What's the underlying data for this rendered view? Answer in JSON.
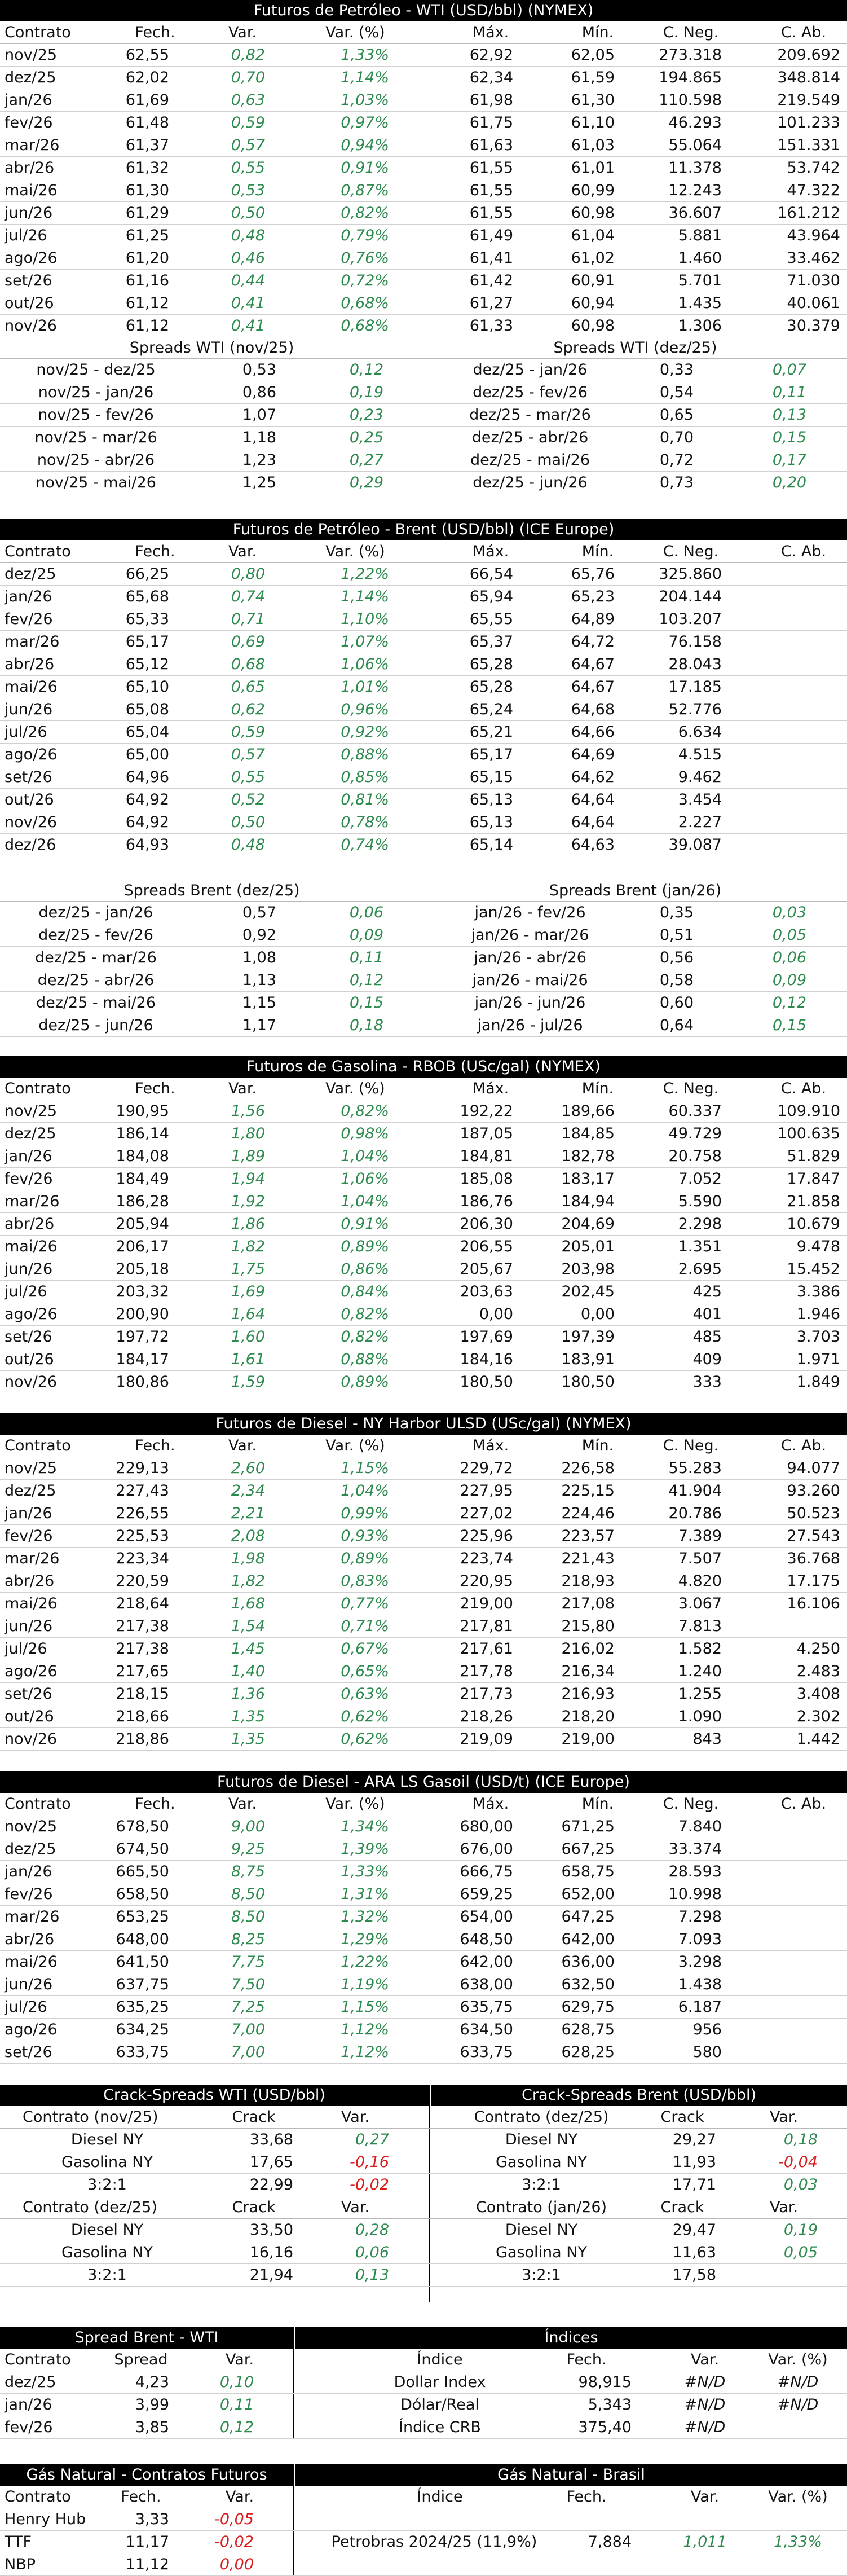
{
  "wti": {
    "title": "Futuros de Petróleo - WTI (USD/bbl) (NYMEX)",
    "headers": [
      "Contrato",
      "Fech.",
      "Var.",
      "Var. (%)",
      "Máx.",
      "Mín.",
      "C. Neg.",
      "C. Ab."
    ],
    "rows": [
      [
        "nov/25",
        "62,55",
        "0,82",
        "1,33%",
        "62,92",
        "62,05",
        "273.318",
        "209.692"
      ],
      [
        "dez/25",
        "62,02",
        "0,70",
        "1,14%",
        "62,34",
        "61,59",
        "194.865",
        "348.814"
      ],
      [
        "jan/26",
        "61,69",
        "0,63",
        "1,03%",
        "61,98",
        "61,30",
        "110.598",
        "219.549"
      ],
      [
        "fev/26",
        "61,48",
        "0,59",
        "0,97%",
        "61,75",
        "61,10",
        "46.293",
        "101.233"
      ],
      [
        "mar/26",
        "61,37",
        "0,57",
        "0,94%",
        "61,63",
        "61,03",
        "55.064",
        "151.331"
      ],
      [
        "abr/26",
        "61,32",
        "0,55",
        "0,91%",
        "61,55",
        "61,01",
        "11.378",
        "53.742"
      ],
      [
        "mai/26",
        "61,30",
        "0,53",
        "0,87%",
        "61,55",
        "60,99",
        "12.243",
        "47.322"
      ],
      [
        "jun/26",
        "61,29",
        "0,50",
        "0,82%",
        "61,55",
        "60,98",
        "36.607",
        "161.212"
      ],
      [
        "jul/26",
        "61,25",
        "0,48",
        "0,79%",
        "61,49",
        "61,04",
        "5.881",
        "43.964"
      ],
      [
        "ago/26",
        "61,20",
        "0,46",
        "0,76%",
        "61,41",
        "61,02",
        "1.460",
        "33.462"
      ],
      [
        "set/26",
        "61,16",
        "0,44",
        "0,72%",
        "61,42",
        "60,91",
        "5.701",
        "71.030"
      ],
      [
        "out/26",
        "61,12",
        "0,41",
        "0,68%",
        "61,27",
        "60,94",
        "1.435",
        "40.061"
      ],
      [
        "nov/26",
        "61,12",
        "0,41",
        "0,68%",
        "61,33",
        "60,98",
        "1.306",
        "30.379"
      ]
    ],
    "spreads_left_title": "Spreads WTI (nov/25)",
    "spreads_right_title": "Spreads WTI (dez/25)",
    "spreads": [
      [
        "nov/25 - dez/25",
        "0,53",
        "0,12",
        "dez/25 - jan/26",
        "0,33",
        "0,07"
      ],
      [
        "nov/25 - jan/26",
        "0,86",
        "0,19",
        "dez/25 - fev/26",
        "0,54",
        "0,11"
      ],
      [
        "nov/25 - fev/26",
        "1,07",
        "0,23",
        "dez/25 - mar/26",
        "0,65",
        "0,13"
      ],
      [
        "nov/25 - mar/26",
        "1,18",
        "0,25",
        "dez/25 - abr/26",
        "0,70",
        "0,15"
      ],
      [
        "nov/25 - abr/26",
        "1,23",
        "0,27",
        "dez/25 - mai/26",
        "0,72",
        "0,17"
      ],
      [
        "nov/25 - mai/26",
        "1,25",
        "0,29",
        "dez/25 - jun/26",
        "0,73",
        "0,20"
      ]
    ]
  },
  "brent": {
    "title": "Futuros de Petróleo - Brent (USD/bbl) (ICE Europe)",
    "headers": [
      "Contrato",
      "Fech.",
      "Var.",
      "Var. (%)",
      "Máx.",
      "Mín.",
      "C. Neg.",
      "C. Ab."
    ],
    "rows": [
      [
        "dez/25",
        "66,25",
        "0,80",
        "1,22%",
        "66,54",
        "65,76",
        "325.860",
        ""
      ],
      [
        "jan/26",
        "65,68",
        "0,74",
        "1,14%",
        "65,94",
        "65,23",
        "204.144",
        ""
      ],
      [
        "fev/26",
        "65,33",
        "0,71",
        "1,10%",
        "65,55",
        "64,89",
        "103.207",
        ""
      ],
      [
        "mar/26",
        "65,17",
        "0,69",
        "1,07%",
        "65,37",
        "64,72",
        "76.158",
        ""
      ],
      [
        "abr/26",
        "65,12",
        "0,68",
        "1,06%",
        "65,28",
        "64,67",
        "28.043",
        ""
      ],
      [
        "mai/26",
        "65,10",
        "0,65",
        "1,01%",
        "65,28",
        "64,67",
        "17.185",
        ""
      ],
      [
        "jun/26",
        "65,08",
        "0,62",
        "0,96%",
        "65,24",
        "64,68",
        "52.776",
        ""
      ],
      [
        "jul/26",
        "65,04",
        "0,59",
        "0,92%",
        "65,21",
        "64,66",
        "6.634",
        ""
      ],
      [
        "ago/26",
        "65,00",
        "0,57",
        "0,88%",
        "65,17",
        "64,69",
        "4.515",
        ""
      ],
      [
        "set/26",
        "64,96",
        "0,55",
        "0,85%",
        "65,15",
        "64,62",
        "9.462",
        ""
      ],
      [
        "out/26",
        "64,92",
        "0,52",
        "0,81%",
        "65,13",
        "64,64",
        "3.454",
        ""
      ],
      [
        "nov/26",
        "64,92",
        "0,50",
        "0,78%",
        "65,13",
        "64,64",
        "2.227",
        ""
      ],
      [
        "dez/26",
        "64,93",
        "0,48",
        "0,74%",
        "65,14",
        "64,63",
        "39.087",
        ""
      ]
    ],
    "spreads_left_title": "Spreads Brent (dez/25)",
    "spreads_right_title": "Spreads Brent (jan/26)",
    "spreads": [
      [
        "dez/25 - jan/26",
        "0,57",
        "0,06",
        "jan/26 - fev/26",
        "0,35",
        "0,03"
      ],
      [
        "dez/25 - fev/26",
        "0,92",
        "0,09",
        "jan/26 - mar/26",
        "0,51",
        "0,05"
      ],
      [
        "dez/25 - mar/26",
        "1,08",
        "0,11",
        "jan/26 - abr/26",
        "0,56",
        "0,06"
      ],
      [
        "dez/25 - abr/26",
        "1,13",
        "0,12",
        "jan/26 - mai/26",
        "0,58",
        "0,09"
      ],
      [
        "dez/25 - mai/26",
        "1,15",
        "0,15",
        "jan/26 - jun/26",
        "0,60",
        "0,12"
      ],
      [
        "dez/25 - jun/26",
        "1,17",
        "0,18",
        "jan/26 - jul/26",
        "0,64",
        "0,15"
      ]
    ]
  },
  "rbob": {
    "title": "Futuros de Gasolina - RBOB (USc/gal) (NYMEX)",
    "headers": [
      "Contrato",
      "Fech.",
      "Var.",
      "Var. (%)",
      "Máx.",
      "Mín.",
      "C. Neg.",
      "C. Ab."
    ],
    "rows": [
      [
        "nov/25",
        "190,95",
        "1,56",
        "0,82%",
        "192,22",
        "189,66",
        "60.337",
        "109.910"
      ],
      [
        "dez/25",
        "186,14",
        "1,80",
        "0,98%",
        "187,05",
        "184,85",
        "49.729",
        "100.635"
      ],
      [
        "jan/26",
        "184,08",
        "1,89",
        "1,04%",
        "184,81",
        "182,78",
        "20.758",
        "51.829"
      ],
      [
        "fev/26",
        "184,49",
        "1,94",
        "1,06%",
        "185,08",
        "183,17",
        "7.052",
        "17.847"
      ],
      [
        "mar/26",
        "186,28",
        "1,92",
        "1,04%",
        "186,76",
        "184,94",
        "5.590",
        "21.858"
      ],
      [
        "abr/26",
        "205,94",
        "1,86",
        "0,91%",
        "206,30",
        "204,69",
        "2.298",
        "10.679"
      ],
      [
        "mai/26",
        "206,17",
        "1,82",
        "0,89%",
        "206,55",
        "205,01",
        "1.351",
        "9.478"
      ],
      [
        "jun/26",
        "205,18",
        "1,75",
        "0,86%",
        "205,67",
        "203,98",
        "2.695",
        "15.452"
      ],
      [
        "jul/26",
        "203,32",
        "1,69",
        "0,84%",
        "203,63",
        "202,45",
        "425",
        "3.386"
      ],
      [
        "ago/26",
        "200,90",
        "1,64",
        "0,82%",
        "0,00",
        "0,00",
        "401",
        "1.946"
      ],
      [
        "set/26",
        "197,72",
        "1,60",
        "0,82%",
        "197,69",
        "197,39",
        "485",
        "3.703"
      ],
      [
        "out/26",
        "184,17",
        "1,61",
        "0,88%",
        "184,16",
        "183,91",
        "409",
        "1.971"
      ],
      [
        "nov/26",
        "180,86",
        "1,59",
        "0,89%",
        "180,50",
        "180,50",
        "333",
        "1.849"
      ]
    ]
  },
  "ulsd": {
    "title": "Futuros de Diesel - NY Harbor ULSD (USc/gal) (NYMEX)",
    "headers": [
      "Contrato",
      "Fech.",
      "Var.",
      "Var. (%)",
      "Máx.",
      "Mín.",
      "C. Neg.",
      "C. Ab."
    ],
    "rows": [
      [
        "nov/25",
        "229,13",
        "2,60",
        "1,15%",
        "229,72",
        "226,58",
        "55.283",
        "94.077"
      ],
      [
        "dez/25",
        "227,43",
        "2,34",
        "1,04%",
        "227,95",
        "225,15",
        "41.904",
        "93.260"
      ],
      [
        "jan/26",
        "226,55",
        "2,21",
        "0,99%",
        "227,02",
        "224,46",
        "20.786",
        "50.523"
      ],
      [
        "fev/26",
        "225,53",
        "2,08",
        "0,93%",
        "225,96",
        "223,57",
        "7.389",
        "27.543"
      ],
      [
        "mar/26",
        "223,34",
        "1,98",
        "0,89%",
        "223,74",
        "221,43",
        "7.507",
        "36.768"
      ],
      [
        "abr/26",
        "220,59",
        "1,82",
        "0,83%",
        "220,95",
        "218,93",
        "4.820",
        "17.175"
      ],
      [
        "mai/26",
        "218,64",
        "1,68",
        "0,77%",
        "219,00",
        "217,08",
        "3.067",
        "16.106"
      ],
      [
        "jun/26",
        "217,38",
        "1,54",
        "0,71%",
        "217,81",
        "215,80",
        "7.813",
        ""
      ],
      [
        "jul/26",
        "217,38",
        "1,45",
        "0,67%",
        "217,61",
        "216,02",
        "1.582",
        "4.250"
      ],
      [
        "ago/26",
        "217,65",
        "1,40",
        "0,65%",
        "217,78",
        "216,34",
        "1.240",
        "2.483"
      ],
      [
        "set/26",
        "218,15",
        "1,36",
        "0,63%",
        "217,73",
        "216,93",
        "1.255",
        "3.408"
      ],
      [
        "out/26",
        "218,66",
        "1,35",
        "0,62%",
        "218,26",
        "218,20",
        "1.090",
        "2.302"
      ],
      [
        "nov/26",
        "218,86",
        "1,35",
        "0,62%",
        "219,09",
        "219,00",
        "843",
        "1.442"
      ]
    ]
  },
  "gasoil": {
    "title": "Futuros de Diesel - ARA LS Gasoil (USD/t) (ICE Europe)",
    "headers": [
      "Contrato",
      "Fech.",
      "Var.",
      "Var. (%)",
      "Máx.",
      "Mín.",
      "C. Neg.",
      "C. Ab."
    ],
    "rows": [
      [
        "nov/25",
        "678,50",
        "9,00",
        "1,34%",
        "680,00",
        "671,25",
        "7.840",
        ""
      ],
      [
        "dez/25",
        "674,50",
        "9,25",
        "1,39%",
        "676,00",
        "667,25",
        "33.374",
        ""
      ],
      [
        "jan/26",
        "665,50",
        "8,75",
        "1,33%",
        "666,75",
        "658,75",
        "28.593",
        ""
      ],
      [
        "fev/26",
        "658,50",
        "8,50",
        "1,31%",
        "659,25",
        "652,00",
        "10.998",
        ""
      ],
      [
        "mar/26",
        "653,25",
        "8,50",
        "1,32%",
        "654,00",
        "647,25",
        "7.298",
        ""
      ],
      [
        "abr/26",
        "648,00",
        "8,25",
        "1,29%",
        "648,50",
        "642,00",
        "7.093",
        ""
      ],
      [
        "mai/26",
        "641,50",
        "7,75",
        "1,22%",
        "642,00",
        "636,00",
        "3.298",
        ""
      ],
      [
        "jun/26",
        "637,75",
        "7,50",
        "1,19%",
        "638,00",
        "632,50",
        "1.438",
        ""
      ],
      [
        "jul/26",
        "635,25",
        "7,25",
        "1,15%",
        "635,75",
        "629,75",
        "6.187",
        ""
      ],
      [
        "ago/26",
        "634,25",
        "7,00",
        "1,12%",
        "634,50",
        "628,75",
        "956",
        ""
      ],
      [
        "set/26",
        "633,75",
        "7,00",
        "1,12%",
        "633,75",
        "628,25",
        "580",
        ""
      ]
    ]
  },
  "crack": {
    "wti_title": "Crack-Spreads WTI (USD/bbl)",
    "brent_title": "Crack-Spreads Brent (USD/bbl)",
    "blocks": [
      {
        "left_head": [
          "Contrato (nov/25)",
          "Crack",
          "Var."
        ],
        "right_head": [
          "Contrato (dez/25)",
          "Crack",
          "Var."
        ],
        "rows": [
          [
            "Diesel NY",
            "33,68",
            "0,27",
            "g",
            "Diesel NY",
            "29,27",
            "0,18",
            "g"
          ],
          [
            "Gasolina NY",
            "17,65",
            "-0,16",
            "r",
            "Gasolina NY",
            "11,93",
            "-0,04",
            "r"
          ],
          [
            "3:2:1",
            "22,99",
            "-0,02",
            "r",
            "3:2:1",
            "17,71",
            "0,03",
            "g"
          ]
        ]
      },
      {
        "left_head": [
          "Contrato (dez/25)",
          "Crack",
          "Var."
        ],
        "right_head": [
          "Contrato (jan/26)",
          "Crack",
          "Var."
        ],
        "rows": [
          [
            "Diesel NY",
            "33,50",
            "0,28",
            "g",
            "Diesel NY",
            "29,47",
            "0,19",
            "g"
          ],
          [
            "Gasolina NY",
            "16,16",
            "0,06",
            "g",
            "Gasolina NY",
            "11,63",
            "0,05",
            "g"
          ],
          [
            "3:2:1",
            "21,94",
            "0,13",
            "g",
            "3:2:1",
            "17,58",
            "",
            ""
          ]
        ]
      }
    ]
  },
  "spread_bw": {
    "title": "Spread Brent - WTI",
    "headers": [
      "Contrato",
      "Spread",
      "Var."
    ],
    "rows": [
      [
        "dez/25",
        "4,23",
        "0,10"
      ],
      [
        "jan/26",
        "3,99",
        "0,11"
      ],
      [
        "fev/26",
        "3,85",
        "0,12"
      ]
    ]
  },
  "indices": {
    "title": "Índices",
    "headers": [
      "Índice",
      "Fech.",
      "Var.",
      "Var. (%)"
    ],
    "rows": [
      [
        "Dollar Index",
        "98,915",
        "#N/D",
        "#N/D"
      ],
      [
        "Dólar/Real",
        "5,343",
        "#N/D",
        "#N/D"
      ],
      [
        "Índice CRB",
        "375,40",
        "#N/D",
        ""
      ]
    ]
  },
  "gas_futures": {
    "title": "Gás Natural - Contratos Futuros",
    "headers": [
      "Contrato",
      "Fech.",
      "Var."
    ],
    "rows": [
      [
        "Henry Hub",
        "3,33",
        "-0,05"
      ],
      [
        "TTF",
        "11,17",
        "-0,02"
      ],
      [
        "NBP",
        "11,12",
        "0,00"
      ]
    ]
  },
  "gas_brasil": {
    "title": "Gás Natural - Brasil",
    "headers": [
      "Índice",
      "Fech.",
      "Var.",
      "Var. (%)"
    ],
    "rows": [
      [
        "Petrobras 2024/25 (11,9%)",
        "7,884",
        "1,011",
        "1,33%"
      ]
    ]
  }
}
